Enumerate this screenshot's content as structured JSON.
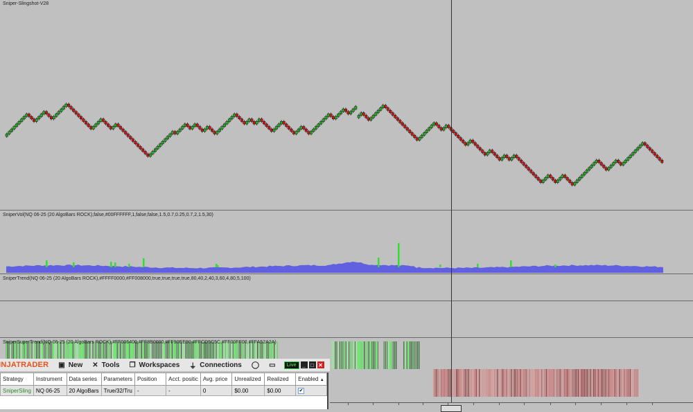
{
  "chart": {
    "title": "Sniper-Slingshot-V28",
    "panels": {
      "vol_label": "SniperVol(NQ 06-25 (20 AlgoBars ROCK),false,#00FFFFFF,1,false,false,1.5,0.7,0.25,0.7,2,1.5,30)",
      "trend_label": "SniperTrend(NQ 06-25 (20 AlgoBars ROCK),#FFFF0000,#FF008000,true,true,true,true,80,40,2,40,3,60,4,80,5,100)",
      "supertrend_label": "SniperSuperTrend(NQ 06-25 (20 AlgoBars ROCK),#FF006400,#FF8B0000,#FF90EE90,#FFCD5C5C,#FF00FF00,#FFA52A2A)"
    },
    "colors": {
      "up": "#22b322",
      "down": "#e01010",
      "volume": "#6060e0",
      "vol_spike": "#33dd33",
      "background": "#c0c0c0"
    },
    "price_brick_runs": [
      [
        9,
        -3,
        4,
        -3,
        6,
        -10,
        4,
        -4,
        2,
        -13,
        10,
        -1,
        4,
        -2,
        2,
        -3,
        2,
        -3,
        8,
        -4,
        2,
        -2,
        2,
        -5,
        4,
        -5,
        3,
        -3,
        8,
        -2,
        4,
        -2,
        3
      ],
      [
        2,
        -3,
        3,
        3,
        -4,
        -10,
        7,
        -3,
        2,
        -8,
        2,
        -6,
        2,
        -4,
        2,
        -2,
        2,
        -11,
        3,
        -3,
        3,
        -4,
        9,
        1,
        -4,
        4,
        -2,
        9,
        -3,
        -2,
        -3
      ]
    ]
  },
  "toolbar": {
    "logo": "NINJATRADER",
    "items": [
      {
        "label": "New",
        "icon": "new-window-icon"
      },
      {
        "label": "Tools",
        "icon": "tools-icon"
      },
      {
        "label": "Workspaces",
        "icon": "workspaces-icon"
      },
      {
        "label": "Connections",
        "icon": "plug-icon"
      }
    ],
    "live_label": "Live"
  },
  "strategies": {
    "columns": [
      "Strategy",
      "Instrument",
      "Data series",
      "Parameters",
      "Position",
      "Acct. positic",
      "Avg. price",
      "Unrealized",
      "Realized",
      "Enabled"
    ],
    "rows": [
      {
        "strategy": "SniperSling",
        "instrument": "NQ 06-25",
        "data_series": "20 AlgoBars",
        "parameters": "True/32/Tru",
        "position": "-",
        "acct_position": "-",
        "avg_price": "0",
        "unrealized": "$0.00",
        "realized": "$0.00",
        "enabled": true
      }
    ]
  }
}
